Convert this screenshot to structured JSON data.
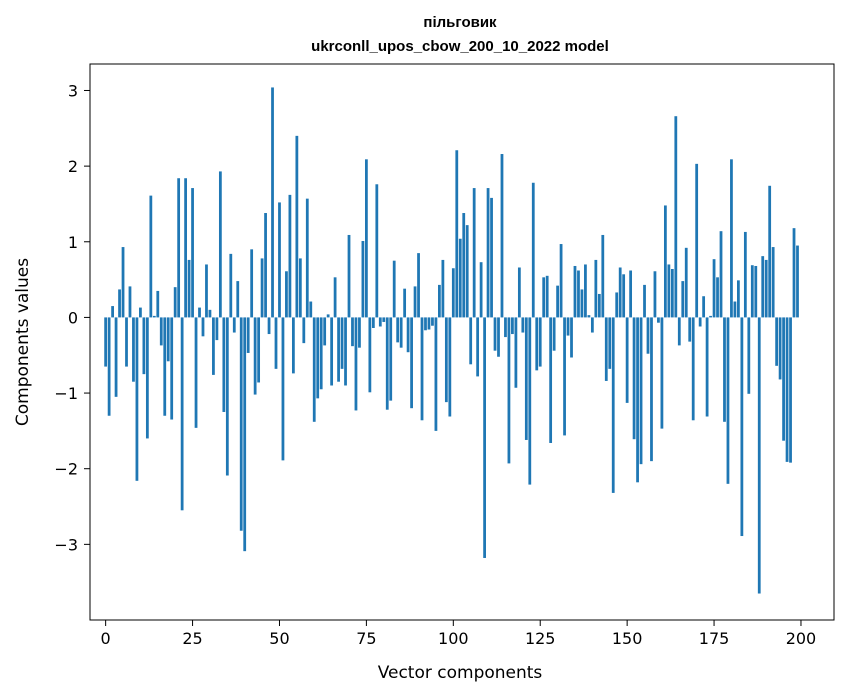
{
  "chart_data": {
    "type": "bar",
    "title": "пільговик",
    "subtitle": "ukrconll_upos_cbow_200_10_2022 model",
    "xlabel": "Vector components",
    "ylabel": "Components values",
    "xlim": [
      -4.5,
      209.5
    ],
    "ylim": [
      -4.0,
      3.35
    ],
    "xticks": [
      0,
      25,
      50,
      75,
      100,
      125,
      150,
      175,
      200
    ],
    "yticks": [
      -3,
      -2,
      -1,
      0,
      1,
      2,
      3
    ],
    "bar_color": "#1f77b4",
    "grid": false,
    "x": [
      0,
      1,
      2,
      3,
      4,
      5,
      6,
      7,
      8,
      9,
      10,
      11,
      12,
      13,
      14,
      15,
      16,
      17,
      18,
      19,
      20,
      21,
      22,
      23,
      24,
      25,
      26,
      27,
      28,
      29,
      30,
      31,
      32,
      33,
      34,
      35,
      36,
      37,
      38,
      39,
      40,
      41,
      42,
      43,
      44,
      45,
      46,
      47,
      48,
      49,
      50,
      51,
      52,
      53,
      54,
      55,
      56,
      57,
      58,
      59,
      60,
      61,
      62,
      63,
      64,
      65,
      66,
      67,
      68,
      69,
      70,
      71,
      72,
      73,
      74,
      75,
      76,
      77,
      78,
      79,
      80,
      81,
      82,
      83,
      84,
      85,
      86,
      87,
      88,
      89,
      90,
      91,
      92,
      93,
      94,
      95,
      96,
      97,
      98,
      99,
      100,
      101,
      102,
      103,
      104,
      105,
      106,
      107,
      108,
      109,
      110,
      111,
      112,
      113,
      114,
      115,
      116,
      117,
      118,
      119,
      120,
      121,
      122,
      123,
      124,
      125,
      126,
      127,
      128,
      129,
      130,
      131,
      132,
      133,
      134,
      135,
      136,
      137,
      138,
      139,
      140,
      141,
      142,
      143,
      144,
      145,
      146,
      147,
      148,
      149,
      150,
      151,
      152,
      153,
      154,
      155,
      156,
      157,
      158,
      159,
      160,
      161,
      162,
      163,
      164,
      165,
      166,
      167,
      168,
      169,
      170,
      171,
      172,
      173,
      174,
      175,
      176,
      177,
      178,
      179,
      180,
      181,
      182,
      183,
      184,
      185,
      186,
      187,
      188,
      189,
      190,
      191,
      192,
      193,
      194,
      195,
      196,
      197,
      198,
      199
    ],
    "values": [
      -0.65,
      -1.3,
      0.15,
      -1.05,
      0.37,
      0.93,
      -0.65,
      0.41,
      -0.85,
      -2.16,
      0.13,
      -0.75,
      -1.6,
      1.61,
      0.02,
      0.35,
      -0.37,
      -1.3,
      -0.58,
      -1.35,
      0.4,
      1.84,
      -2.55,
      1.84,
      0.76,
      1.71,
      -1.46,
      0.13,
      -0.25,
      0.7,
      0.1,
      -0.76,
      -0.3,
      1.93,
      -1.25,
      -2.09,
      0.84,
      -0.2,
      0.48,
      -2.82,
      -3.09,
      -0.47,
      0.9,
      -1.02,
      -0.86,
      0.78,
      1.38,
      -0.22,
      3.04,
      -0.68,
      1.52,
      -1.89,
      0.61,
      1.62,
      -0.74,
      2.4,
      0.78,
      -0.34,
      1.57,
      0.21,
      -1.38,
      -1.07,
      -0.95,
      -0.37,
      0.04,
      -0.9,
      0.53,
      -0.85,
      -0.68,
      -0.9,
      1.09,
      -0.38,
      -1.23,
      -0.4,
      1.01,
      2.09,
      -0.99,
      -0.14,
      1.76,
      -0.12,
      -0.06,
      -1.22,
      -1.1,
      0.75,
      -0.33,
      -0.4,
      0.38,
      -0.46,
      -1.2,
      0.41,
      0.85,
      -1.36,
      -0.17,
      -0.16,
      -0.11,
      -1.5,
      0.43,
      0.76,
      -1.12,
      -1.31,
      0.65,
      2.21,
      1.04,
      1.38,
      1.22,
      -0.62,
      1.71,
      -0.78,
      0.73,
      -3.18,
      1.71,
      1.58,
      -0.44,
      -0.52,
      2.16,
      -0.26,
      -1.93,
      -0.22,
      -0.93,
      0.66,
      -0.2,
      -1.62,
      -2.21,
      1.78,
      -0.7,
      -0.65,
      0.53,
      0.55,
      -1.66,
      -0.44,
      0.42,
      0.97,
      -1.56,
      -0.24,
      -0.53,
      0.68,
      0.62,
      0.37,
      0.7,
      0.03,
      -0.2,
      0.76,
      0.31,
      1.09,
      -0.84,
      -0.68,
      -2.32,
      0.33,
      0.66,
      0.57,
      -1.13,
      0.62,
      -1.61,
      -2.18,
      -1.94,
      0.43,
      -0.48,
      -1.9,
      0.61,
      -0.07,
      -1.47,
      1.48,
      0.7,
      0.64,
      2.66,
      -0.37,
      0.48,
      0.92,
      -0.32,
      -1.36,
      2.03,
      -0.12,
      0.28,
      -1.31,
      0.02,
      0.77,
      0.53,
      1.14,
      -1.38,
      -2.2,
      2.09,
      0.21,
      0.49,
      -2.89,
      1.13,
      -1.01,
      0.69,
      0.68,
      -3.65,
      0.81,
      0.76,
      1.74,
      0.93,
      -0.64,
      -0.82,
      -1.63,
      -1.91,
      -1.92,
      1.18,
      0.95
    ]
  }
}
